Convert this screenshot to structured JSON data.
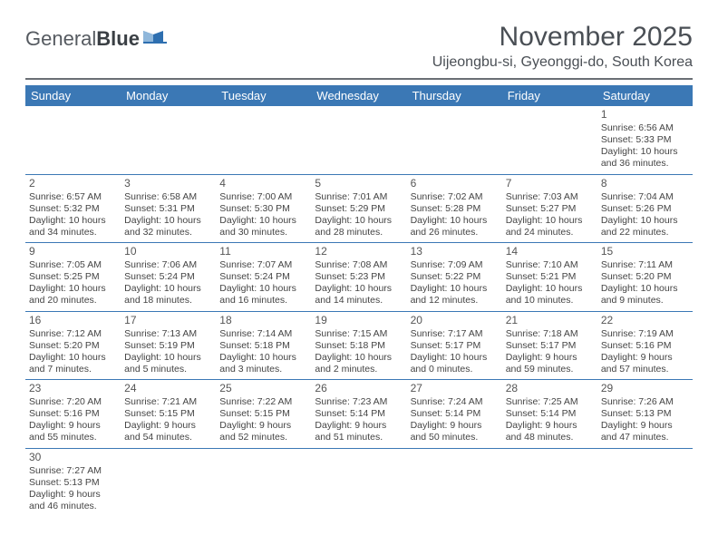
{
  "logo": {
    "part1": "General",
    "part2": "Blue"
  },
  "title": "November 2025",
  "location": "Uijeongbu-si, Gyeonggi-do, South Korea",
  "colors": {
    "header_bg": "#3b78b5",
    "header_text": "#ffffff",
    "cell_border": "#3b78b5",
    "title_color": "#4a4f55",
    "logo_blue": "#2e6fb0"
  },
  "day_headers": [
    "Sunday",
    "Monday",
    "Tuesday",
    "Wednesday",
    "Thursday",
    "Friday",
    "Saturday"
  ],
  "first_day_index": 6,
  "days": [
    {
      "n": 1,
      "sunrise": "6:56 AM",
      "sunset": "5:33 PM",
      "daylight": "10 hours and 36 minutes."
    },
    {
      "n": 2,
      "sunrise": "6:57 AM",
      "sunset": "5:32 PM",
      "daylight": "10 hours and 34 minutes."
    },
    {
      "n": 3,
      "sunrise": "6:58 AM",
      "sunset": "5:31 PM",
      "daylight": "10 hours and 32 minutes."
    },
    {
      "n": 4,
      "sunrise": "7:00 AM",
      "sunset": "5:30 PM",
      "daylight": "10 hours and 30 minutes."
    },
    {
      "n": 5,
      "sunrise": "7:01 AM",
      "sunset": "5:29 PM",
      "daylight": "10 hours and 28 minutes."
    },
    {
      "n": 6,
      "sunrise": "7:02 AM",
      "sunset": "5:28 PM",
      "daylight": "10 hours and 26 minutes."
    },
    {
      "n": 7,
      "sunrise": "7:03 AM",
      "sunset": "5:27 PM",
      "daylight": "10 hours and 24 minutes."
    },
    {
      "n": 8,
      "sunrise": "7:04 AM",
      "sunset": "5:26 PM",
      "daylight": "10 hours and 22 minutes."
    },
    {
      "n": 9,
      "sunrise": "7:05 AM",
      "sunset": "5:25 PM",
      "daylight": "10 hours and 20 minutes."
    },
    {
      "n": 10,
      "sunrise": "7:06 AM",
      "sunset": "5:24 PM",
      "daylight": "10 hours and 18 minutes."
    },
    {
      "n": 11,
      "sunrise": "7:07 AM",
      "sunset": "5:24 PM",
      "daylight": "10 hours and 16 minutes."
    },
    {
      "n": 12,
      "sunrise": "7:08 AM",
      "sunset": "5:23 PM",
      "daylight": "10 hours and 14 minutes."
    },
    {
      "n": 13,
      "sunrise": "7:09 AM",
      "sunset": "5:22 PM",
      "daylight": "10 hours and 12 minutes."
    },
    {
      "n": 14,
      "sunrise": "7:10 AM",
      "sunset": "5:21 PM",
      "daylight": "10 hours and 10 minutes."
    },
    {
      "n": 15,
      "sunrise": "7:11 AM",
      "sunset": "5:20 PM",
      "daylight": "10 hours and 9 minutes."
    },
    {
      "n": 16,
      "sunrise": "7:12 AM",
      "sunset": "5:20 PM",
      "daylight": "10 hours and 7 minutes."
    },
    {
      "n": 17,
      "sunrise": "7:13 AM",
      "sunset": "5:19 PM",
      "daylight": "10 hours and 5 minutes."
    },
    {
      "n": 18,
      "sunrise": "7:14 AM",
      "sunset": "5:18 PM",
      "daylight": "10 hours and 3 minutes."
    },
    {
      "n": 19,
      "sunrise": "7:15 AM",
      "sunset": "5:18 PM",
      "daylight": "10 hours and 2 minutes."
    },
    {
      "n": 20,
      "sunrise": "7:17 AM",
      "sunset": "5:17 PM",
      "daylight": "10 hours and 0 minutes."
    },
    {
      "n": 21,
      "sunrise": "7:18 AM",
      "sunset": "5:17 PM",
      "daylight": "9 hours and 59 minutes."
    },
    {
      "n": 22,
      "sunrise": "7:19 AM",
      "sunset": "5:16 PM",
      "daylight": "9 hours and 57 minutes."
    },
    {
      "n": 23,
      "sunrise": "7:20 AM",
      "sunset": "5:16 PM",
      "daylight": "9 hours and 55 minutes."
    },
    {
      "n": 24,
      "sunrise": "7:21 AM",
      "sunset": "5:15 PM",
      "daylight": "9 hours and 54 minutes."
    },
    {
      "n": 25,
      "sunrise": "7:22 AM",
      "sunset": "5:15 PM",
      "daylight": "9 hours and 52 minutes."
    },
    {
      "n": 26,
      "sunrise": "7:23 AM",
      "sunset": "5:14 PM",
      "daylight": "9 hours and 51 minutes."
    },
    {
      "n": 27,
      "sunrise": "7:24 AM",
      "sunset": "5:14 PM",
      "daylight": "9 hours and 50 minutes."
    },
    {
      "n": 28,
      "sunrise": "7:25 AM",
      "sunset": "5:14 PM",
      "daylight": "9 hours and 48 minutes."
    },
    {
      "n": 29,
      "sunrise": "7:26 AM",
      "sunset": "5:13 PM",
      "daylight": "9 hours and 47 minutes."
    },
    {
      "n": 30,
      "sunrise": "7:27 AM",
      "sunset": "5:13 PM",
      "daylight": "9 hours and 46 minutes."
    }
  ],
  "labels": {
    "sunrise_prefix": "Sunrise: ",
    "sunset_prefix": "Sunset: ",
    "daylight_prefix": "Daylight: "
  }
}
